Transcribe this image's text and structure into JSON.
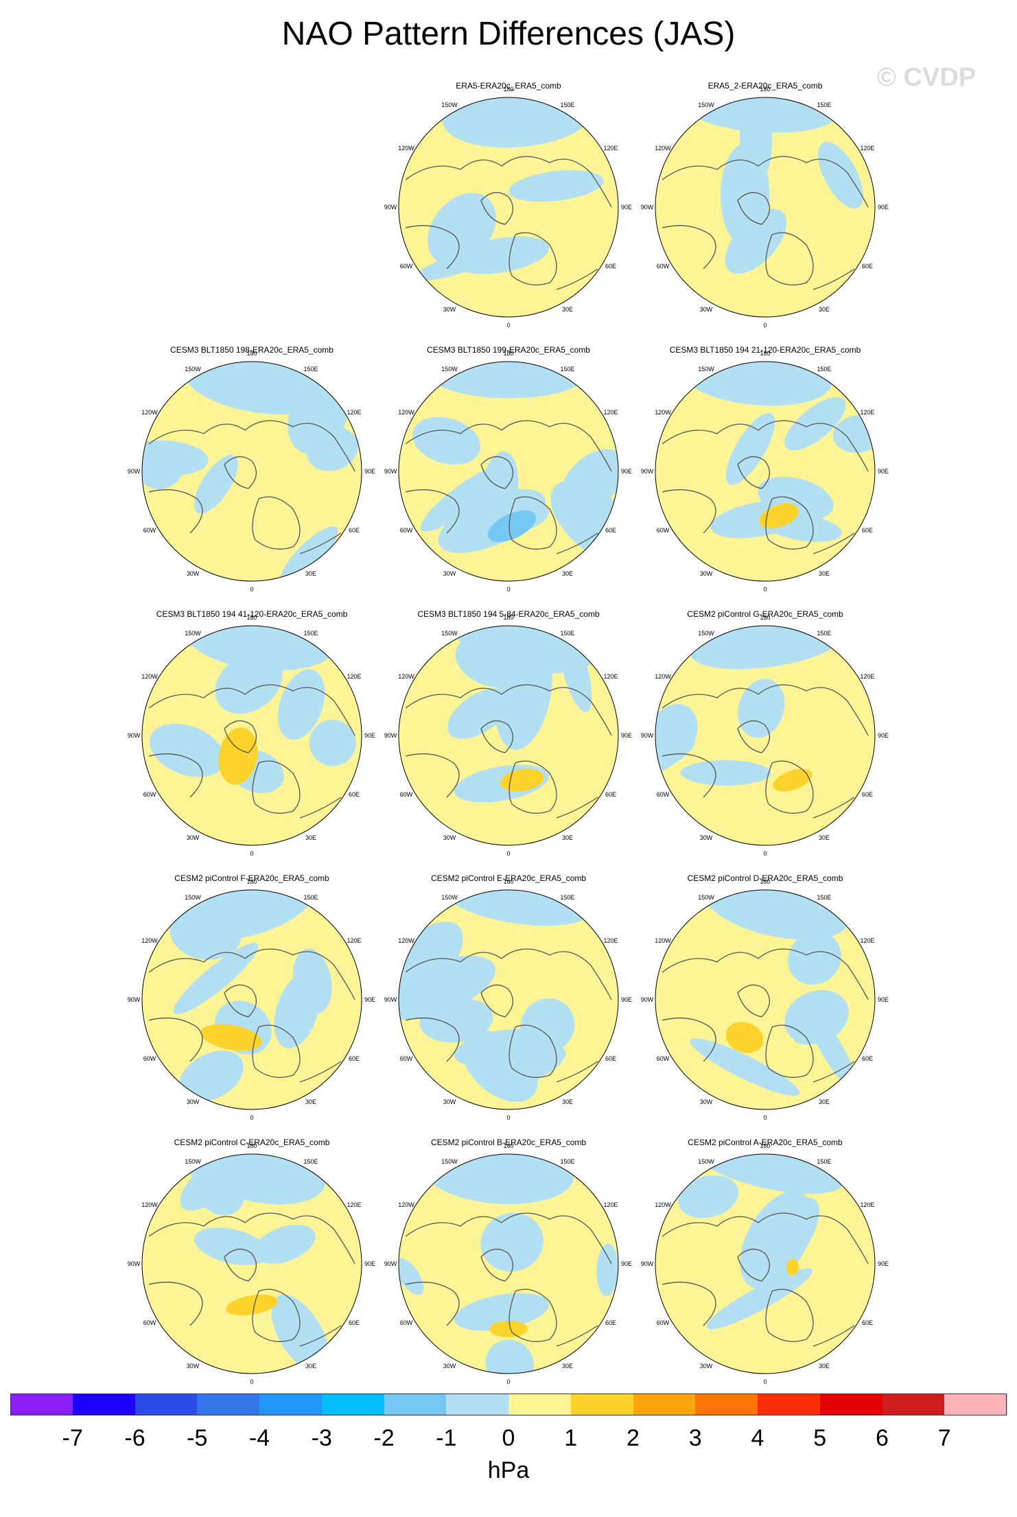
{
  "title": "NAO Pattern Differences (JAS)",
  "watermark": "© CVDP",
  "units": "hPa",
  "longitude_labels": [
    "180",
    "150E",
    "120E",
    "90E",
    "60E",
    "30E",
    "0",
    "30W",
    "60W",
    "90W",
    "120W",
    "150W"
  ],
  "panels": [
    {
      "title": "ERA5-ERA20c_ERA5_comb",
      "row": 0,
      "col": 1
    },
    {
      "title": "ERA5_2-ERA20c_ERA5_comb",
      "row": 0,
      "col": 2
    },
    {
      "title": "CESM3 BLT1850 198-ERA20c_ERA5_comb",
      "row": 1,
      "col": 0
    },
    {
      "title": "CESM3 BLT1850 199-ERA20c_ERA5_comb",
      "row": 1,
      "col": 1
    },
    {
      "title": "CESM3 BLT1850 194 21-120-ERA20c_ERA5_comb",
      "row": 1,
      "col": 2
    },
    {
      "title": "CESM3 BLT1850 194 41-120-ERA20c_ERA5_comb",
      "row": 2,
      "col": 0
    },
    {
      "title": "CESM3 BLT1850 194 5-84-ERA20c_ERA5_comb",
      "row": 2,
      "col": 1
    },
    {
      "title": "CESM2 piControl G-ERA20c_ERA5_comb",
      "row": 2,
      "col": 2
    },
    {
      "title": "CESM2 piControl F-ERA20c_ERA5_comb",
      "row": 3,
      "col": 0
    },
    {
      "title": "CESM2 piControl E-ERA20c_ERA5_comb",
      "row": 3,
      "col": 1
    },
    {
      "title": "CESM2 piControl D-ERA20c_ERA5_comb",
      "row": 3,
      "col": 2
    },
    {
      "title": "CESM2 piControl C-ERA20c_ERA5_comb",
      "row": 4,
      "col": 0
    },
    {
      "title": "CESM2 piControl B-ERA20c_ERA5_comb",
      "row": 4,
      "col": 1
    },
    {
      "title": "CESM2 piControl A-ERA20c_ERA5_comb",
      "row": 4,
      "col": 2
    }
  ],
  "colorbar": {
    "colors": [
      "#8b1df7",
      "#2200ff",
      "#2c4ce8",
      "#3575ee",
      "#2196fd",
      "#00bfff",
      "#74c8f3",
      "#b2dff2",
      "#fdf595",
      "#fcd32a",
      "#fca50c",
      "#fb7404",
      "#fc2d08",
      "#e60000",
      "#cf1d1d",
      "#ffb3b8"
    ],
    "labels": [
      "-7",
      "-6",
      "-5",
      "-4",
      "-3",
      "-2",
      "-1",
      "0",
      "1",
      "2",
      "3",
      "4",
      "5",
      "6",
      "7"
    ]
  },
  "fill_colors": {
    "ocean_pos": "#fdf595",
    "neg1": "#b2dff2",
    "neg2": "#74c8f3",
    "pos2": "#fcd32a",
    "coast": "#555555"
  }
}
